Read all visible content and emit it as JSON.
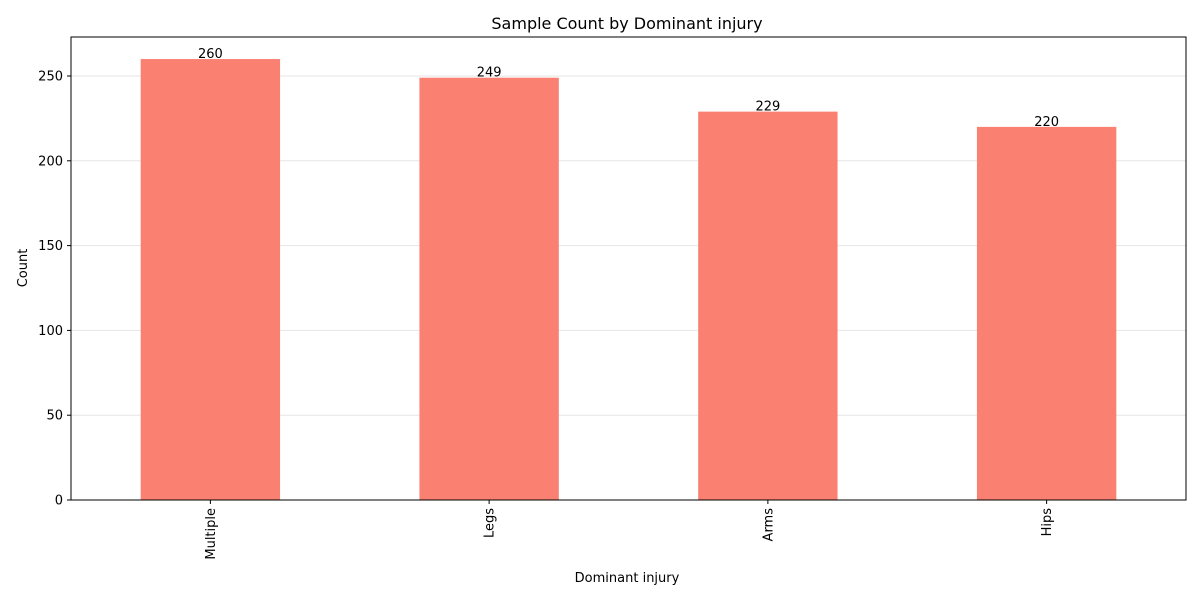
{
  "chart_data": {
    "type": "bar",
    "title": "Sample Count by Dominant injury",
    "xlabel": "Dominant injury",
    "ylabel": "Count",
    "categories": [
      "Multiple",
      "Legs",
      "Arms",
      "Hips"
    ],
    "values": [
      260,
      249,
      229,
      220
    ],
    "data_labels": [
      "260",
      "249",
      "229",
      "220"
    ],
    "ylim": [
      0,
      273
    ],
    "yticks": [
      0,
      50,
      100,
      150,
      200,
      250
    ],
    "ytick_labels": [
      "0",
      "50",
      "100",
      "150",
      "200",
      "250"
    ],
    "grid": "y",
    "bar_color": "#fa8072",
    "grid_color": "#e6e6e6"
  }
}
